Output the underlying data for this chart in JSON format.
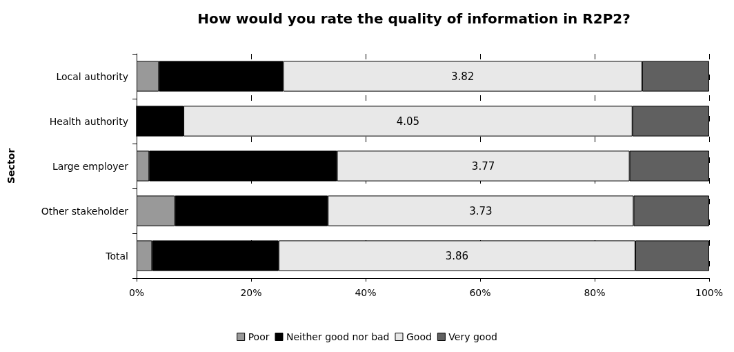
{
  "chart_data": {
    "type": "bar",
    "orientation": "horizontal",
    "stacked": true,
    "title": "How would you rate the quality of information in R2P2?",
    "ylabel": "Sector",
    "categories": [
      "Local authority",
      "Health authority",
      "Large employer",
      "Other stakeholder",
      "Total"
    ],
    "series": [
      {
        "name": "Poor",
        "color": "#999999",
        "values": [
          3.9,
          0,
          2.2,
          6.7,
          2.7
        ]
      },
      {
        "name": "Neither good nor bad",
        "color": "#000000",
        "values": [
          21.7,
          8.2,
          32.8,
          26.7,
          22.1
        ]
      },
      {
        "name": "Good",
        "color": "#e8e8e8",
        "values": [
          62.7,
          78.4,
          51.1,
          53.4,
          62.3
        ]
      },
      {
        "name": "Very good",
        "color": "#606060",
        "values": [
          11.7,
          13.4,
          13.9,
          13.2,
          12.9
        ]
      }
    ],
    "xlim": [
      0,
      100
    ],
    "xticks": [
      {
        "value": 0,
        "label": "0%"
      },
      {
        "value": 20,
        "label": "20%"
      },
      {
        "value": 40,
        "label": "40%"
      },
      {
        "value": 60,
        "label": "60%"
      },
      {
        "value": 80,
        "label": "80%"
      },
      {
        "value": 100,
        "label": "100%"
      }
    ],
    "annotations": [
      "3.82",
      "4.05",
      "3.77",
      "3.73",
      "3.86"
    ],
    "grid": "x",
    "legend": "bottom"
  }
}
